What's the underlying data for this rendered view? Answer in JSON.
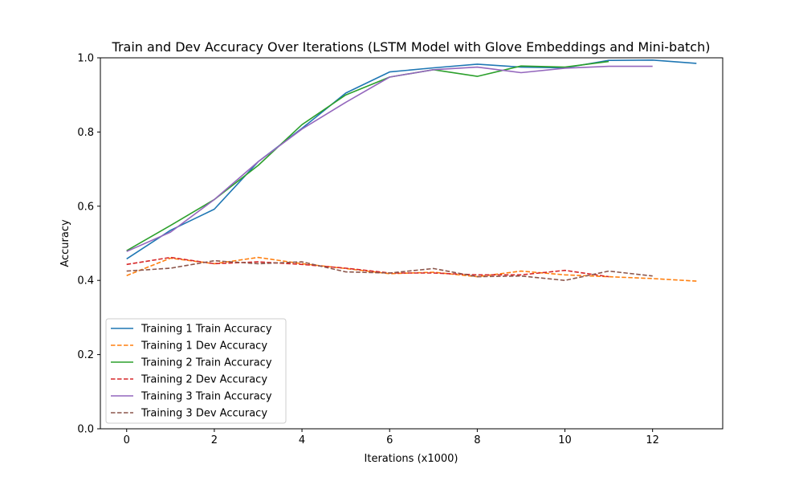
{
  "chart_data": {
    "type": "line",
    "title": "Train and Dev Accuracy Over Iterations (LSTM Model with Glove Embeddings and Mini-batch)",
    "xlabel": "Iterations (x1000)",
    "ylabel": "Accuracy",
    "xlim": [
      -0.6,
      13.6
    ],
    "ylim": [
      0.0,
      1.0
    ],
    "xticks": [
      "0",
      "2",
      "4",
      "6",
      "8",
      "10",
      "12"
    ],
    "yticks": [
      "0.0",
      "0.2",
      "0.4",
      "0.6",
      "0.8",
      "1.0"
    ],
    "grid": false,
    "legend_position": "lower-left",
    "series": [
      {
        "name": "Training 1 Train Accuracy",
        "color": "#1f77b4",
        "style": "solid",
        "x": [
          0,
          1,
          2,
          3,
          4,
          5,
          6,
          7,
          8,
          9,
          10,
          11,
          12,
          13
        ],
        "y": [
          0.458,
          0.535,
          0.592,
          0.72,
          0.81,
          0.905,
          0.962,
          0.973,
          0.983,
          0.975,
          0.973,
          0.993,
          0.994,
          0.985
        ]
      },
      {
        "name": "Training 1 Dev Accuracy",
        "color": "#ff7f0e",
        "style": "dashed",
        "x": [
          0,
          1,
          2,
          3,
          4,
          5,
          6,
          7,
          8,
          9,
          10,
          11,
          12,
          13
        ],
        "y": [
          0.413,
          0.46,
          0.445,
          0.462,
          0.445,
          0.432,
          0.418,
          0.422,
          0.41,
          0.425,
          0.415,
          0.41,
          0.405,
          0.398
        ]
      },
      {
        "name": "Training 2 Train Accuracy",
        "color": "#2ca02c",
        "style": "solid",
        "x": [
          0,
          1,
          2,
          3,
          4,
          5,
          6,
          7,
          8,
          9,
          10,
          11
        ],
        "y": [
          0.48,
          0.548,
          0.618,
          0.71,
          0.82,
          0.9,
          0.948,
          0.968,
          0.95,
          0.978,
          0.975,
          0.99
        ]
      },
      {
        "name": "Training 2 Dev Accuracy",
        "color": "#d62728",
        "style": "dashed",
        "x": [
          0,
          1,
          2,
          3,
          4,
          5,
          6,
          7,
          8,
          9,
          10,
          11
        ],
        "y": [
          0.443,
          0.462,
          0.445,
          0.45,
          0.443,
          0.433,
          0.42,
          0.42,
          0.415,
          0.415,
          0.427,
          0.41
        ]
      },
      {
        "name": "Training 3 Train Accuracy",
        "color": "#9467bd",
        "style": "solid",
        "x": [
          0,
          1,
          2,
          3,
          4,
          5,
          6,
          7,
          8,
          9,
          10,
          11,
          12
        ],
        "y": [
          0.478,
          0.53,
          0.618,
          0.72,
          0.808,
          0.88,
          0.948,
          0.968,
          0.975,
          0.96,
          0.972,
          0.977,
          0.977
        ]
      },
      {
        "name": "Training 3 Dev Accuracy",
        "color": "#8c564b",
        "style": "dashed",
        "x": [
          0,
          1,
          2,
          3,
          4,
          5,
          6,
          7,
          8,
          9,
          10,
          11,
          12
        ],
        "y": [
          0.425,
          0.433,
          0.453,
          0.445,
          0.45,
          0.423,
          0.42,
          0.432,
          0.41,
          0.412,
          0.4,
          0.425,
          0.412
        ]
      }
    ]
  }
}
